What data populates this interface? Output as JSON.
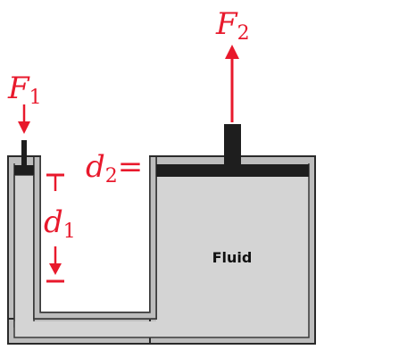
{
  "diagram": {
    "labels": {
      "force_input": {
        "symbol": "F",
        "subscript": "1"
      },
      "force_output": {
        "symbol": "F",
        "subscript": "2"
      },
      "distance_input": {
        "symbol": "d",
        "subscript": "1"
      },
      "distance_output": {
        "symbol": "d",
        "subscript": "2",
        "suffix": "="
      },
      "fluid": "Fluid"
    },
    "colors": {
      "arrow": "#e8192c",
      "fluid": "#d4d4d4",
      "piston": "#1e1e1e",
      "wall_fill": "#b9b9b9",
      "wall_stroke": "#2a2a2a"
    }
  }
}
